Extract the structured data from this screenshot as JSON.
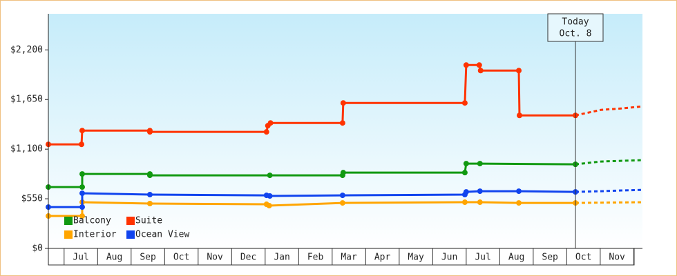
{
  "chart_data": {
    "type": "line",
    "xlim": [
      0.53,
      18.26
    ],
    "ylim": [
      0,
      2600
    ],
    "yticks": [
      {
        "value": 0,
        "label": "$0"
      },
      {
        "value": 550,
        "label": "$550"
      },
      {
        "value": 1100,
        "label": "$1,100"
      },
      {
        "value": 1650,
        "label": "$1,650"
      },
      {
        "value": 2200,
        "label": "$2,200"
      }
    ],
    "xticks": [
      {
        "value": 1.5,
        "label": "Jul"
      },
      {
        "value": 2.5,
        "label": "Aug"
      },
      {
        "value": 3.5,
        "label": "Sep"
      },
      {
        "value": 4.5,
        "label": "Oct"
      },
      {
        "value": 5.5,
        "label": "Nov"
      },
      {
        "value": 6.5,
        "label": "Dec"
      },
      {
        "value": 7.5,
        "label": "Jan"
      },
      {
        "value": 8.5,
        "label": "Feb"
      },
      {
        "value": 9.5,
        "label": "Mar"
      },
      {
        "value": 10.5,
        "label": "Apr"
      },
      {
        "value": 11.5,
        "label": "May"
      },
      {
        "value": 12.5,
        "label": "Jun"
      },
      {
        "value": 13.5,
        "label": "Jul"
      },
      {
        "value": 14.5,
        "label": "Aug"
      },
      {
        "value": 15.5,
        "label": "Sep"
      },
      {
        "value": 16.5,
        "label": "Oct"
      },
      {
        "value": 17.5,
        "label": "Nov"
      }
    ],
    "annotation": {
      "x": 16.26,
      "lines": [
        "Today",
        "Oct. 8"
      ]
    },
    "series": [
      {
        "name": "Balcony",
        "color": "#119911",
        "x": [
          0.53,
          1.54,
          1.54,
          3.56,
          3.56,
          7.14,
          9.31,
          9.33,
          12.96,
          13.0,
          13.41,
          16.26,
          17.02,
          18.26
        ],
        "values": [
          680,
          680,
          825,
          825,
          810,
          810,
          810,
          840,
          840,
          940,
          940,
          932,
          963,
          978
        ]
      },
      {
        "name": "Suite",
        "color": "#ff3300",
        "x": [
          0.53,
          1.52,
          1.54,
          3.56,
          3.56,
          7.04,
          7.08,
          7.16,
          9.31,
          9.33,
          12.96,
          13.0,
          13.39,
          13.43,
          14.57,
          14.59,
          16.26,
          17.02,
          17.64,
          18.26
        ],
        "values": [
          1153,
          1153,
          1306,
          1306,
          1291,
          1291,
          1360,
          1390,
          1390,
          1612,
          1612,
          2032,
          2032,
          1971,
          1971,
          1474,
          1474,
          1535,
          1551,
          1574
        ]
      },
      {
        "name": "Interior",
        "color": "#ffa500",
        "x": [
          0.53,
          1.54,
          1.54,
          3.56,
          7.04,
          7.12,
          9.31,
          12.96,
          13.41,
          14.57,
          16.26,
          18.26
        ],
        "values": [
          359,
          359,
          512,
          497,
          489,
          474,
          504,
          512,
          512,
          504,
          504,
          512
        ]
      },
      {
        "name": "Ocean View",
        "color": "#1144ee",
        "x": [
          0.53,
          1.54,
          1.54,
          3.56,
          7.04,
          7.14,
          9.31,
          12.96,
          13.0,
          13.41,
          14.57,
          16.26,
          17.02,
          17.64,
          18.26
        ],
        "values": [
          458,
          458,
          611,
          596,
          588,
          581,
          588,
          596,
          626,
          634,
          634,
          626,
          634,
          642,
          649
        ]
      }
    ]
  }
}
